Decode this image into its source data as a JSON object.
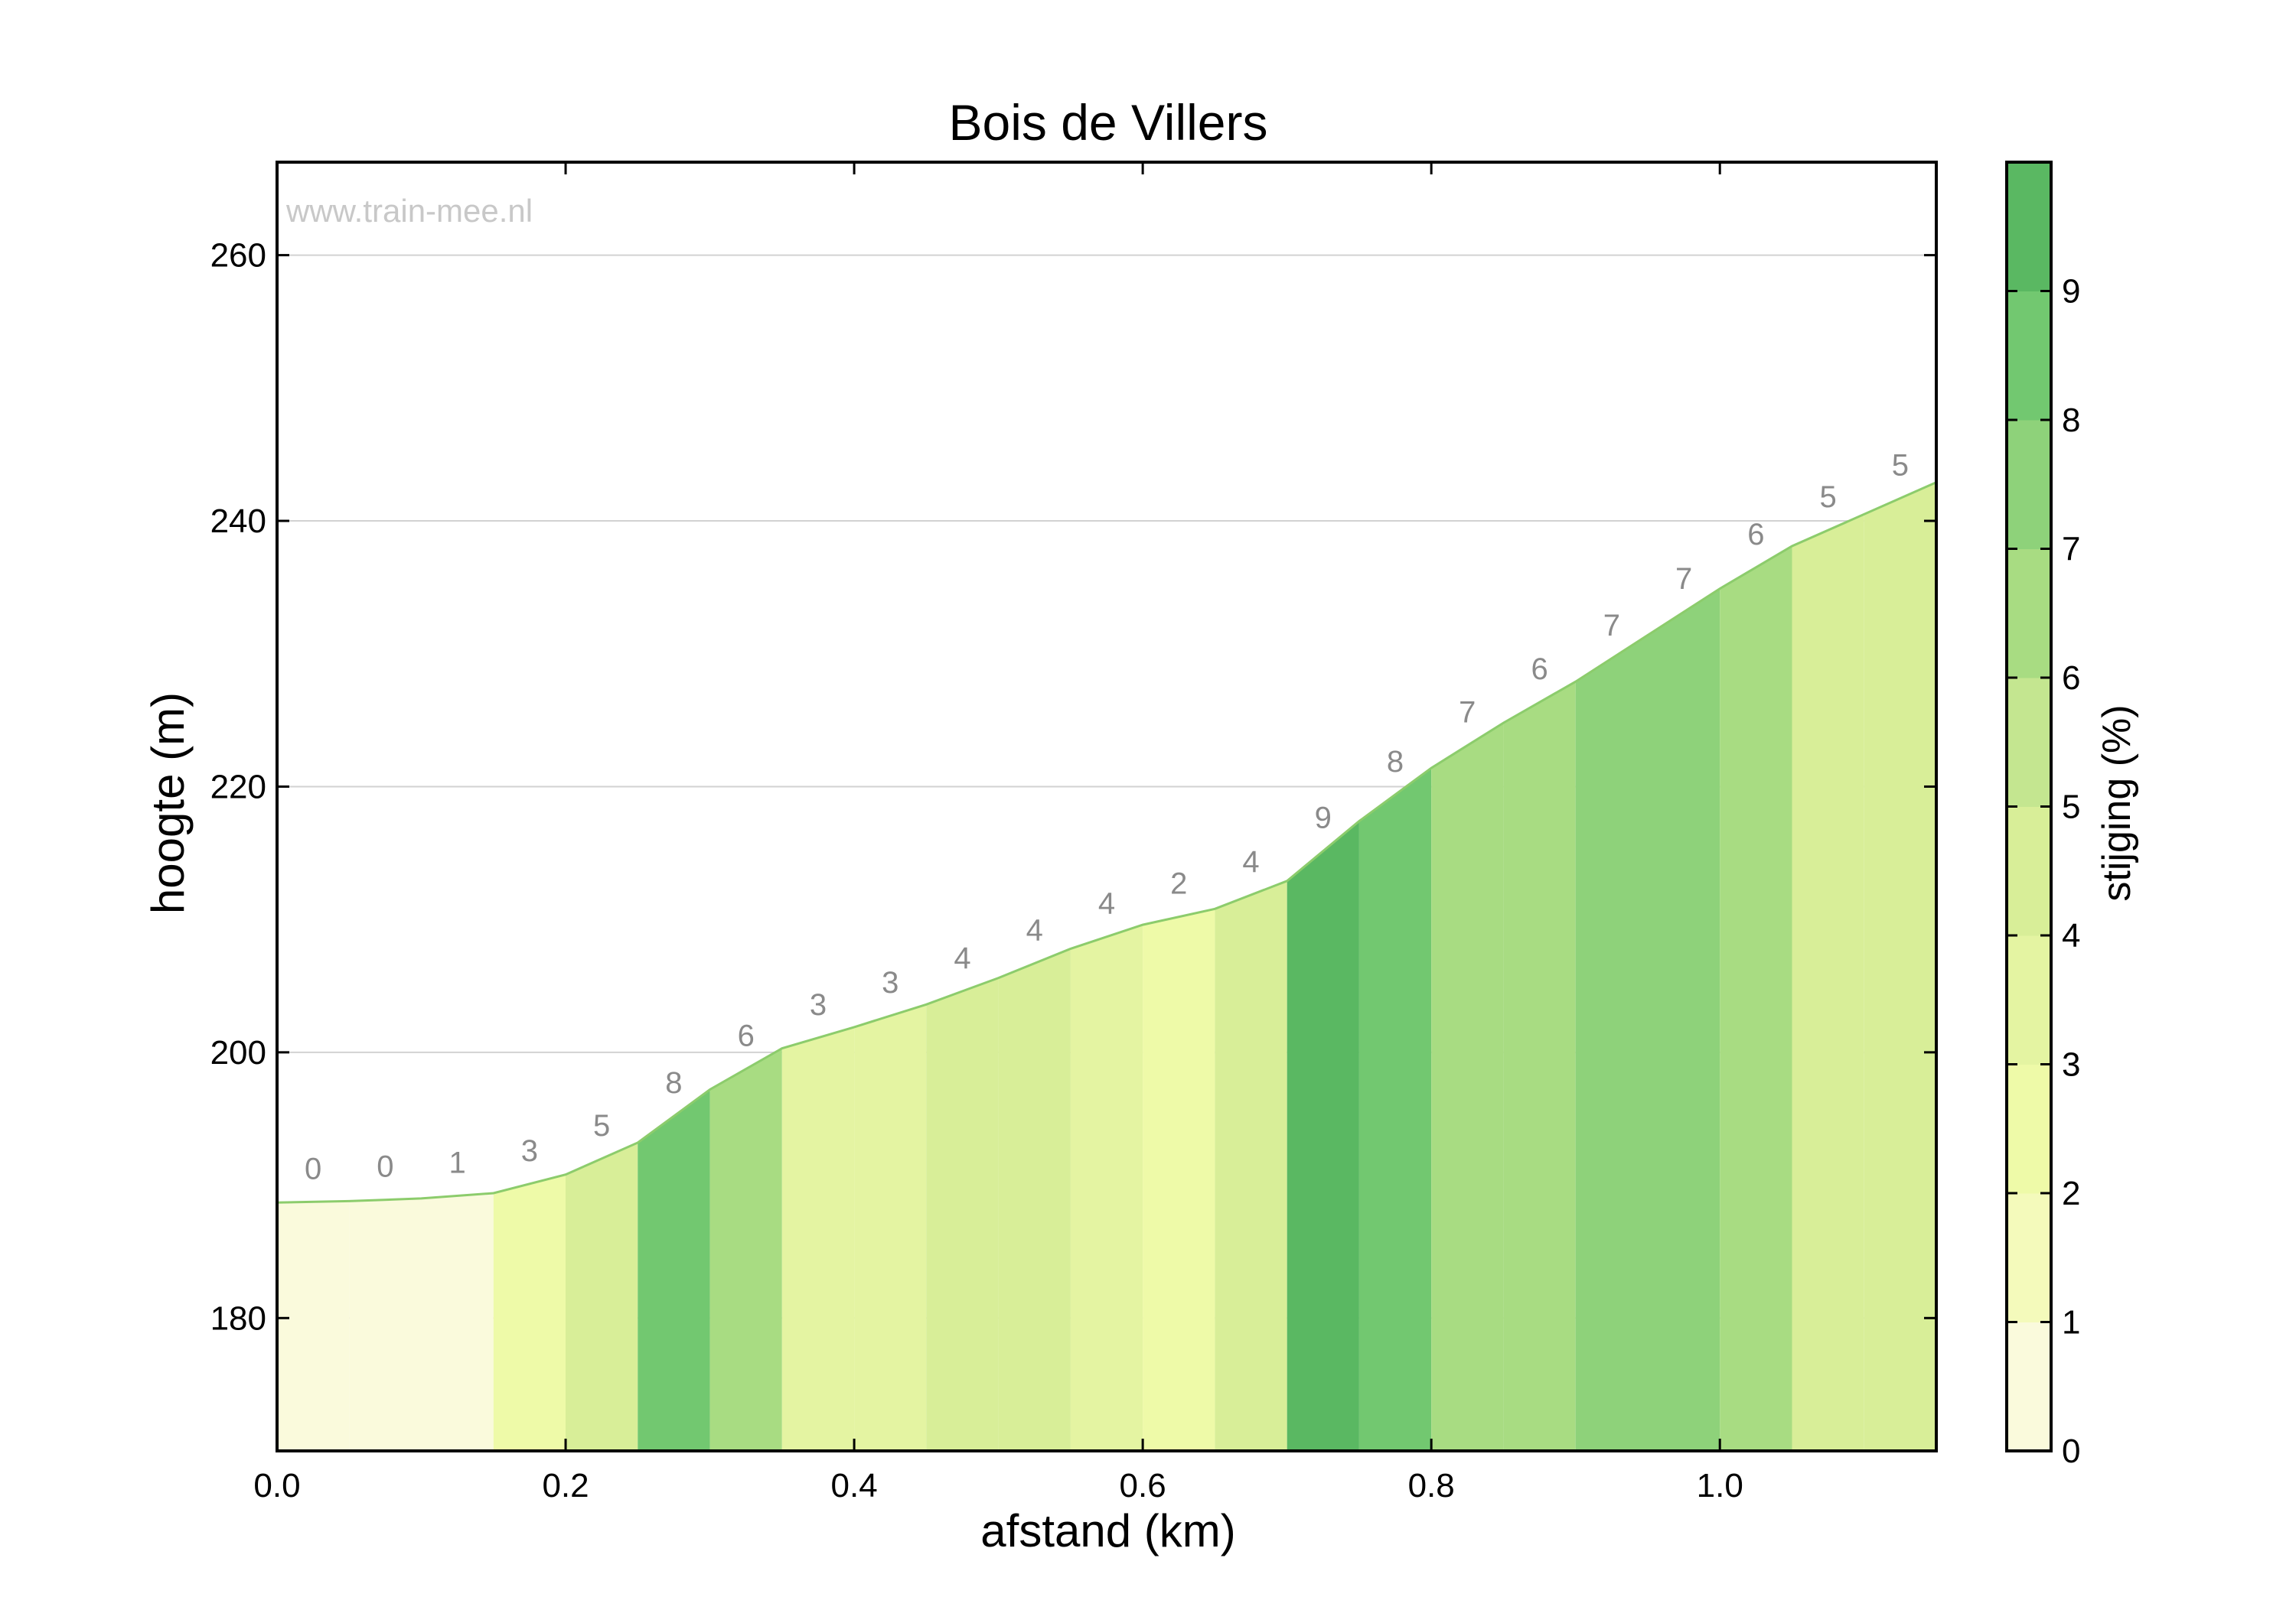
{
  "chart_data": {
    "type": "area",
    "title": "Bois de Villers",
    "xlabel": "afstand (km)",
    "ylabel": "hoogte (m)",
    "watermark": "www.train-mee.nl",
    "xlim": [
      0,
      1.15
    ],
    "ylim": [
      170,
      267
    ],
    "xticks": [
      0.0,
      0.2,
      0.4,
      0.6,
      0.8,
      1.0
    ],
    "xtick_labels": [
      "0.0",
      "0.2",
      "0.4",
      "0.6",
      "0.8",
      "1.0"
    ],
    "yticks": [
      180,
      200,
      220,
      240,
      260
    ],
    "ytick_labels": [
      "180",
      "200",
      "220",
      "240",
      "260"
    ],
    "grid": "horizontal",
    "profile": {
      "x": [
        0,
        0.05,
        0.1,
        0.15,
        0.2,
        0.25,
        0.3,
        0.35,
        0.4,
        0.45,
        0.5,
        0.55,
        0.6,
        0.65,
        0.7,
        0.75,
        0.8,
        0.85,
        0.9,
        0.95,
        1.0,
        1.05,
        1.15
      ],
      "elevation": [
        188.7,
        188.8,
        189.0,
        189.4,
        190.8,
        193.2,
        197.2,
        200.3,
        201.9,
        203.6,
        205.6,
        207.8,
        209.6,
        210.8,
        212.9,
        217.4,
        221.4,
        224.8,
        227.9,
        231.4,
        234.9,
        238.1,
        242.9
      ]
    },
    "segments": {
      "x_start": [
        0,
        0.05,
        0.1,
        0.15,
        0.2,
        0.25,
        0.3,
        0.35,
        0.4,
        0.45,
        0.5,
        0.55,
        0.6,
        0.65,
        0.7,
        0.75,
        0.8,
        0.85,
        0.9,
        0.95,
        1.0,
        1.05,
        1.1
      ],
      "gradient_labels": [
        "0",
        "0",
        "1",
        "3",
        "5",
        "8",
        "6",
        "3",
        "3",
        "4",
        "4",
        "4",
        "2",
        "4",
        "9",
        "8",
        "7",
        "6",
        "7",
        "7",
        "6",
        "5",
        "5"
      ],
      "gradient_values": [
        0.2,
        0.2,
        0.8,
        2.8,
        4.8,
        8.0,
        6.2,
        3.2,
        3.4,
        4.0,
        4.4,
        3.6,
        2.4,
        4.2,
        9.0,
        8.0,
        6.8,
        6.2,
        7.0,
        7.0,
        6.4,
        4.8,
        4.8
      ]
    },
    "colorbar": {
      "label": "stijging (%)",
      "range": [
        0,
        9
      ],
      "ticks": [
        "0",
        "1",
        "2",
        "3",
        "4",
        "5",
        "6",
        "7",
        "8",
        "9"
      ],
      "colors": [
        "#fafadc",
        "#f4fabb",
        "#eefaa8",
        "#e4f4a2",
        "#d8ee98",
        "#c4e690",
        "#a8dc82",
        "#8ed27a",
        "#72c870",
        "#5ab862"
      ]
    }
  }
}
